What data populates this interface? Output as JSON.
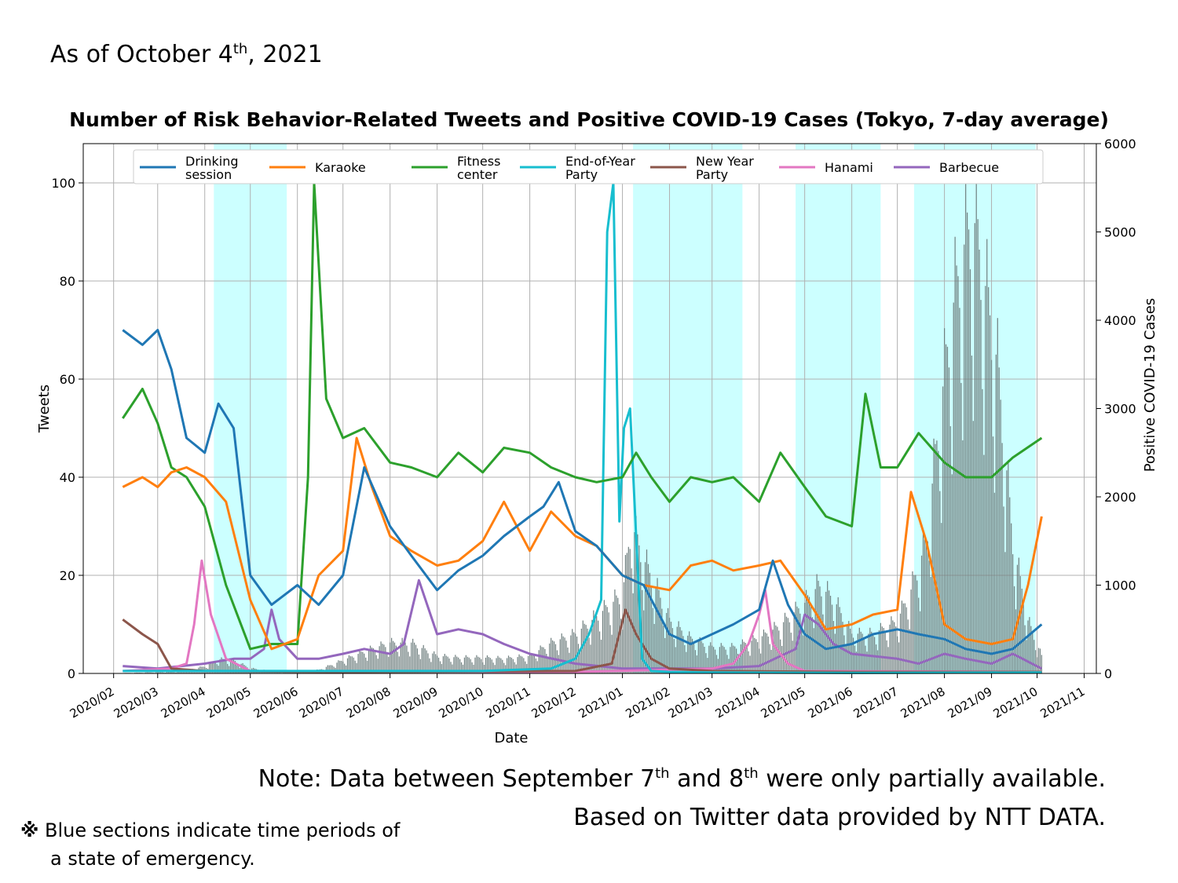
{
  "header": {
    "as_of_main": "As of October 4",
    "as_of_sup": "th",
    "as_of_rest": ", 2021"
  },
  "footer": {
    "note_a": "Note: Data between September 7",
    "note_sup1": "th",
    "note_b": " and 8",
    "note_sup2": "th",
    "note_c": " were only partially available.",
    "based_on": "Based on Twitter data provided by NTT DATA.",
    "footnote_mark": "※",
    "footnote_line1": " Blue sections indicate time periods of",
    "footnote_line2": "a state of emergency."
  },
  "colors": {
    "emergency_band": "#ccffff",
    "grid": "#b0b0b0",
    "cases_bar": "#6f7f7f"
  },
  "chart_data": {
    "type": "line",
    "title": "Number of Risk Behavior-Related Tweets and Positive COVID-19 Cases (Tokyo, 7-day average)",
    "xlabel": "Date",
    "ylabel": "Tweets",
    "ylabel_right": "Positive COVID-19 Cases",
    "xlim": [
      "2020-02",
      "2021-11"
    ],
    "ylim": [
      0,
      108
    ],
    "ylim_right": [
      0,
      6000
    ],
    "grid": true,
    "legend": "top",
    "x_ticks": [
      "2020/02",
      "2020/03",
      "2020/04",
      "2020/05",
      "2020/06",
      "2020/07",
      "2020/08",
      "2020/09",
      "2020/10",
      "2020/11",
      "2020/12",
      "2021/01",
      "2021/02",
      "2021/03",
      "2021/04",
      "2021/05",
      "2021/06",
      "2021/07",
      "2021/08",
      "2021/09",
      "2021/10",
      "2021/11"
    ],
    "y_ticks": [
      "0",
      "20",
      "40",
      "60",
      "80",
      "100"
    ],
    "y_ticks_right": [
      "0",
      "1000",
      "2000",
      "3000",
      "4000",
      "5000",
      "6000"
    ],
    "emergency_periods": [
      [
        "2020-04-07",
        "2020-05-25"
      ],
      [
        "2021-01-08",
        "2021-03-21"
      ],
      [
        "2021-04-25",
        "2021-06-20"
      ],
      [
        "2021-07-12",
        "2021-09-30"
      ]
    ],
    "series": [
      {
        "name": "Drinking\nsession",
        "color": "#1f77b4",
        "x": [
          "2020-02-07",
          "2020-02-20",
          "2020-03-01",
          "2020-03-10",
          "2020-03-20",
          "2020-04-01",
          "2020-04-10",
          "2020-04-20",
          "2020-05-01",
          "2020-05-15",
          "2020-06-01",
          "2020-06-15",
          "2020-07-01",
          "2020-07-15",
          "2020-08-01",
          "2020-08-15",
          "2020-09-01",
          "2020-09-15",
          "2020-10-01",
          "2020-10-15",
          "2020-11-01",
          "2020-11-10",
          "2020-11-20",
          "2020-12-01",
          "2020-12-15",
          "2021-01-01",
          "2021-01-15",
          "2021-02-01",
          "2021-02-15",
          "2021-03-01",
          "2021-03-15",
          "2021-04-01",
          "2021-04-10",
          "2021-04-20",
          "2021-05-01",
          "2021-05-15",
          "2021-06-01",
          "2021-06-15",
          "2021-07-01",
          "2021-07-15",
          "2021-08-01",
          "2021-08-15",
          "2021-09-01",
          "2021-09-15",
          "2021-10-04"
        ],
        "values": [
          70,
          67,
          70,
          62,
          48,
          45,
          55,
          50,
          20,
          14,
          18,
          14,
          20,
          42,
          30,
          24,
          17,
          21,
          24,
          28,
          32,
          34,
          39,
          29,
          26,
          20,
          18,
          8,
          6,
          8,
          10,
          13,
          23,
          14,
          8,
          5,
          6,
          8,
          9,
          8,
          7,
          5,
          4,
          5,
          10
        ]
      },
      {
        "name": "Karaoke",
        "color": "#ff7f0e",
        "x": [
          "2020-02-07",
          "2020-02-20",
          "2020-03-01",
          "2020-03-10",
          "2020-03-20",
          "2020-04-01",
          "2020-04-15",
          "2020-05-01",
          "2020-05-15",
          "2020-06-01",
          "2020-06-15",
          "2020-07-01",
          "2020-07-10",
          "2020-07-20",
          "2020-08-01",
          "2020-08-15",
          "2020-09-01",
          "2020-09-15",
          "2020-10-01",
          "2020-10-15",
          "2020-11-01",
          "2020-11-15",
          "2020-12-01",
          "2020-12-15",
          "2021-01-01",
          "2021-01-15",
          "2021-02-01",
          "2021-02-15",
          "2021-03-01",
          "2021-03-15",
          "2021-04-01",
          "2021-04-15",
          "2021-05-01",
          "2021-05-15",
          "2021-06-01",
          "2021-06-15",
          "2021-07-01",
          "2021-07-10",
          "2021-07-20",
          "2021-08-01",
          "2021-08-15",
          "2021-09-01",
          "2021-09-15",
          "2021-09-25",
          "2021-10-04"
        ],
        "values": [
          38,
          40,
          38,
          41,
          42,
          40,
          35,
          15,
          5,
          7,
          20,
          25,
          48,
          38,
          28,
          25,
          22,
          23,
          27,
          35,
          25,
          33,
          28,
          26,
          20,
          18,
          17,
          22,
          23,
          21,
          22,
          23,
          16,
          9,
          10,
          12,
          13,
          37,
          27,
          10,
          7,
          6,
          7,
          18,
          32
        ]
      },
      {
        "name": "Fitness\ncenter",
        "color": "#2ca02c",
        "x": [
          "2020-02-07",
          "2020-02-20",
          "2020-03-01",
          "2020-03-10",
          "2020-03-20",
          "2020-04-01",
          "2020-04-15",
          "2020-05-01",
          "2020-05-15",
          "2020-06-01",
          "2020-06-08",
          "2020-06-12",
          "2020-06-20",
          "2020-07-01",
          "2020-07-15",
          "2020-08-01",
          "2020-08-15",
          "2020-09-01",
          "2020-09-15",
          "2020-10-01",
          "2020-10-15",
          "2020-11-01",
          "2020-11-15",
          "2020-12-01",
          "2020-12-15",
          "2021-01-01",
          "2021-01-10",
          "2021-01-20",
          "2021-02-01",
          "2021-02-15",
          "2021-03-01",
          "2021-03-15",
          "2021-04-01",
          "2021-04-15",
          "2021-05-01",
          "2021-05-15",
          "2021-06-01",
          "2021-06-10",
          "2021-06-20",
          "2021-07-01",
          "2021-07-15",
          "2021-08-01",
          "2021-08-15",
          "2021-09-01",
          "2021-09-15",
          "2021-10-04"
        ],
        "values": [
          52,
          58,
          51,
          42,
          40,
          34,
          18,
          5,
          6,
          6,
          40,
          100,
          56,
          48,
          50,
          43,
          42,
          40,
          45,
          41,
          46,
          45,
          42,
          40,
          39,
          40,
          45,
          40,
          35,
          40,
          39,
          40,
          35,
          45,
          38,
          32,
          30,
          57,
          42,
          42,
          49,
          43,
          40,
          40,
          44,
          48
        ]
      },
      {
        "name": "End-of-Year\nParty",
        "color": "#17becf",
        "x": [
          "2020-02-07",
          "2020-06-01",
          "2020-10-01",
          "2020-11-15",
          "2020-12-01",
          "2020-12-10",
          "2020-12-18",
          "2020-12-22",
          "2020-12-26",
          "2020-12-30",
          "2021-01-02",
          "2021-01-06",
          "2021-01-10",
          "2021-01-14",
          "2021-01-20",
          "2021-02-01",
          "2021-03-01",
          "2021-06-01",
          "2021-10-04"
        ],
        "values": [
          0.5,
          0.5,
          0.5,
          1,
          3,
          8,
          15,
          90,
          100,
          31,
          50,
          54,
          28,
          3,
          0.5,
          0.3,
          0.2,
          0.1,
          0.2
        ]
      },
      {
        "name": "New Year\nParty",
        "color": "#8c564b",
        "x": [
          "2020-02-07",
          "2020-02-20",
          "2020-03-01",
          "2020-03-10",
          "2020-04-01",
          "2020-07-01",
          "2020-12-01",
          "2020-12-25",
          "2021-01-03",
          "2021-01-10",
          "2021-01-20",
          "2021-02-01",
          "2021-03-01",
          "2021-06-01",
          "2021-10-04"
        ],
        "values": [
          11,
          8,
          6,
          1,
          0.5,
          0.3,
          0.5,
          2,
          13,
          8,
          3,
          1,
          0.5,
          0.3,
          0.3
        ]
      },
      {
        "name": "Hanami",
        "color": "#e377c2",
        "x": [
          "2020-02-07",
          "2020-03-10",
          "2020-03-20",
          "2020-03-25",
          "2020-03-30",
          "2020-04-05",
          "2020-04-15",
          "2020-05-01",
          "2020-12-01",
          "2021-03-01",
          "2021-03-15",
          "2021-03-25",
          "2021-04-01",
          "2021-04-05",
          "2021-04-10",
          "2021-04-20",
          "2021-05-01",
          "2021-10-04"
        ],
        "values": [
          0.5,
          1,
          2,
          10,
          23,
          12,
          3,
          0.5,
          0.3,
          1,
          2,
          6,
          12,
          17,
          6,
          2,
          0.5,
          0.3
        ]
      },
      {
        "name": "Barbecue",
        "color": "#9467bd",
        "x": [
          "2020-02-07",
          "2020-03-01",
          "2020-04-01",
          "2020-04-20",
          "2020-05-01",
          "2020-05-10",
          "2020-05-15",
          "2020-05-20",
          "2020-06-01",
          "2020-06-15",
          "2020-07-01",
          "2020-07-15",
          "2020-08-01",
          "2020-08-10",
          "2020-08-20",
          "2020-09-01",
          "2020-09-15",
          "2020-10-01",
          "2020-10-15",
          "2020-11-01",
          "2020-12-01",
          "2021-01-01",
          "2021-03-01",
          "2021-04-01",
          "2021-04-25",
          "2021-05-01",
          "2021-05-10",
          "2021-05-20",
          "2021-06-01",
          "2021-07-01",
          "2021-07-15",
          "2021-08-01",
          "2021-08-15",
          "2021-09-01",
          "2021-09-15",
          "2021-10-04"
        ],
        "values": [
          1.5,
          1,
          2,
          3,
          3,
          5,
          13,
          7,
          3,
          3,
          4,
          5,
          4,
          6,
          19,
          8,
          9,
          8,
          6,
          4,
          2,
          1,
          1,
          1.5,
          5,
          12,
          10,
          6,
          4,
          3,
          2,
          4,
          3,
          2,
          4,
          1
        ]
      }
    ],
    "cases_series": {
      "name": "Positive COVID-19 Cases",
      "color": "#6f7f7f",
      "x": [
        "2020-02-07",
        "2020-03-15",
        "2020-04-01",
        "2020-04-10",
        "2020-04-20",
        "2020-05-01",
        "2020-05-20",
        "2020-06-15",
        "2020-07-01",
        "2020-07-15",
        "2020-08-01",
        "2020-08-15",
        "2020-09-01",
        "2020-09-15",
        "2020-10-01",
        "2020-10-15",
        "2020-11-01",
        "2020-11-15",
        "2020-12-01",
        "2020-12-15",
        "2021-01-01",
        "2021-01-07",
        "2021-01-15",
        "2021-01-25",
        "2021-02-01",
        "2021-02-15",
        "2021-03-01",
        "2021-03-15",
        "2021-04-01",
        "2021-04-15",
        "2021-05-01",
        "2021-05-10",
        "2021-05-20",
        "2021-06-01",
        "2021-06-15",
        "2021-07-01",
        "2021-07-10",
        "2021-07-20",
        "2021-07-28",
        "2021-08-05",
        "2021-08-13",
        "2021-08-20",
        "2021-08-27",
        "2021-09-05",
        "2021-09-15",
        "2021-09-25",
        "2021-10-04"
      ],
      "values": [
        5,
        20,
        80,
        160,
        150,
        60,
        10,
        40,
        150,
        250,
        350,
        350,
        200,
        180,
        180,
        170,
        200,
        350,
        450,
        650,
        900,
        1700,
        1300,
        900,
        600,
        400,
        300,
        300,
        400,
        550,
        800,
        1000,
        850,
        450,
        450,
        600,
        950,
        1500,
        2800,
        4000,
        4800,
        5200,
        4500,
        3500,
        1500,
        600,
        200
      ]
    }
  }
}
